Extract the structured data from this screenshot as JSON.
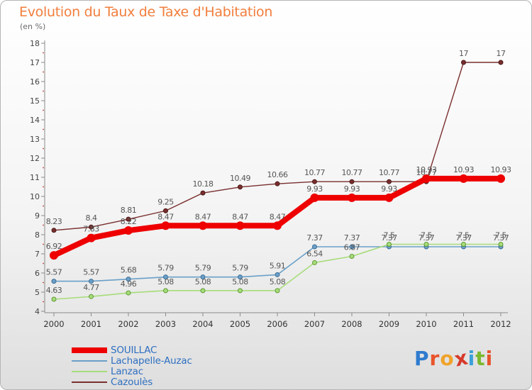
{
  "header": {
    "title": "Evolution du Taux de Taxe d'Habitation",
    "subtitle": "(en %)"
  },
  "brand": {
    "name": "Proxiti",
    "letters": [
      "P",
      "r",
      "o",
      "x",
      "i",
      "t",
      "i"
    ],
    "letter_colors": [
      "#2e7bcf",
      "#e8542c",
      "#f0a32a",
      "#d63a2c",
      "#3aa0d8",
      "#7bb82e",
      "#e8542c"
    ]
  },
  "chart_data": {
    "type": "line",
    "title": "Evolution du Taux de Taxe d'Habitation",
    "ylabel": "(en %)",
    "x": [
      2000,
      2001,
      2002,
      2003,
      2004,
      2005,
      2006,
      2007,
      2008,
      2009,
      2010,
      2011,
      2012
    ],
    "ylim": [
      4,
      18
    ],
    "yticks": [
      4,
      5,
      6,
      7,
      8,
      9,
      10,
      11,
      12,
      13,
      14,
      15,
      16,
      17,
      18
    ],
    "grid": false,
    "legend_position": "bottom-left",
    "series": [
      {
        "name": "SOUILLAC",
        "color": "#ee0000",
        "values": [
          6.92,
          7.83,
          8.22,
          8.47,
          8.47,
          8.47,
          8.47,
          9.93,
          9.93,
          9.93,
          10.93,
          10.93,
          10.93
        ],
        "labels": [
          "6.92",
          "7.83",
          "8.22",
          "8.47",
          "8.47",
          "8.47",
          "8.47",
          "9.93",
          "9.93",
          "9.93",
          "10.93",
          "10.93",
          "10.93"
        ]
      },
      {
        "name": "Lachapelle-Auzac",
        "color": "#6a9fc8",
        "values": [
          5.57,
          5.57,
          5.68,
          5.79,
          5.79,
          5.79,
          5.91,
          7.37,
          7.37,
          7.37,
          7.37,
          7.37,
          7.37
        ],
        "labels": [
          "5.57",
          "5.57",
          "5.68",
          "5.79",
          "5.79",
          "5.79",
          "5.91",
          "7.37",
          "7.37",
          "7.37",
          "7.37",
          "7.37",
          "7.37"
        ]
      },
      {
        "name": "Lanzac",
        "color": "#a7dc7a",
        "values": [
          4.63,
          4.77,
          4.96,
          5.08,
          5.08,
          5.08,
          5.08,
          6.54,
          6.87,
          7.5,
          7.5,
          7.5,
          7.5
        ],
        "labels": [
          "4.63",
          "4.77",
          "4.96",
          "5.08",
          "5.08",
          "5.08",
          "5.08",
          "6.54",
          "6.87",
          "7.5",
          "7.5",
          "7.5",
          "7.5"
        ]
      },
      {
        "name": "Cazoulès",
        "color": "#7a2e2e",
        "values": [
          8.23,
          8.4,
          8.81,
          9.25,
          10.18,
          10.49,
          10.66,
          10.77,
          10.77,
          10.77,
          10.77,
          17,
          17
        ],
        "labels": [
          "8.23",
          "8.4",
          "8.81",
          "9.25",
          "10.18",
          "10.49",
          "10.66",
          "10.77",
          "10.77",
          "10.77",
          "10.77",
          "17",
          "17"
        ]
      }
    ]
  }
}
